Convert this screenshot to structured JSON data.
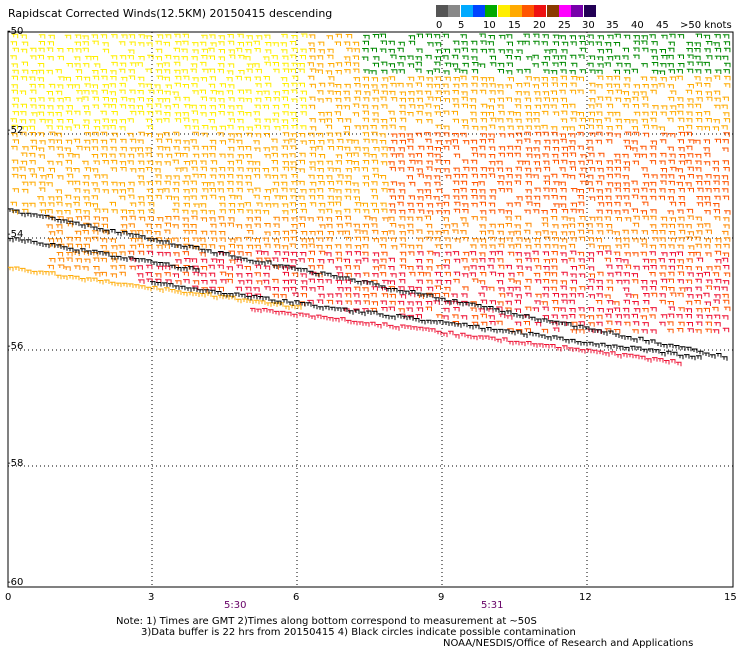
{
  "title": "Rapidscat Corrected Winds(12.5KM) 20150415 descending",
  "legend": {
    "labels": [
      "0",
      "5",
      "10",
      "15",
      "20",
      "25",
      "30",
      "35",
      "40",
      "45",
      ">50 knots"
    ],
    "colors": [
      "#555555",
      "#888888",
      "#00aaff",
      "#0044ff",
      "#00aa00",
      "#ffee00",
      "#ffaa00",
      "#ff5500",
      "#ee1111",
      "#8b3a00",
      "#ff00ff",
      "#7700aa",
      "#220055"
    ]
  },
  "axes": {
    "y_labels": [
      "-50",
      "-52",
      "-54",
      "-56",
      "-58",
      "-60"
    ],
    "x_labels": [
      "0",
      "3",
      "6",
      "9",
      "12",
      "15"
    ],
    "time_labels": [
      "5:30",
      "5:31"
    ]
  },
  "notes": {
    "line1": "Note: 1) Times are GMT 2)Times along bottom correspond to measurement at ~50S",
    "line2": "3)Data buffer is 22 hrs from 20150415 4) Black circles indicate possible contamination",
    "credit": "NOAA/NESDIS/Office of Research and Applications"
  }
}
